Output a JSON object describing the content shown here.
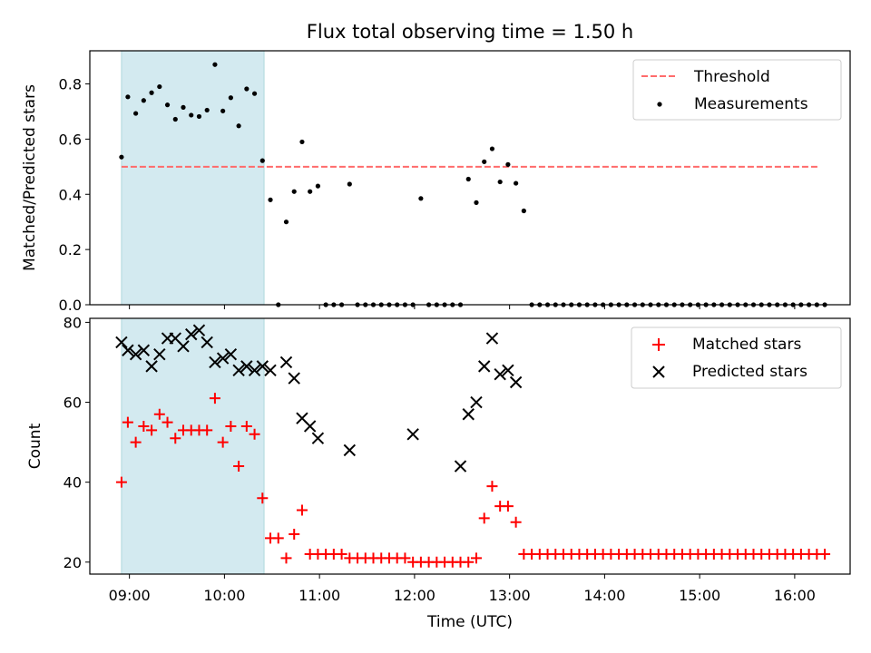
{
  "chart_data": [
    {
      "type": "scatter",
      "title": "Flux total observing time = 1.50 h",
      "xlabel": "",
      "ylabel": "Matched/Predicted stars",
      "ylim": [
        0,
        0.92
      ],
      "yticks": [
        0.0,
        0.2,
        0.4,
        0.6,
        0.8
      ],
      "ytick_labels": [
        "0.0",
        "0.2",
        "0.4",
        "0.6",
        "0.8"
      ],
      "highlight_span_utc": [
        "08:55",
        "10:25"
      ],
      "highlight_color": "#d3eaf0",
      "threshold": {
        "name": "Threshold",
        "y": 0.5,
        "x_range": [
          "08:55",
          "16:15"
        ],
        "color": "#ff6b6b",
        "style": "dashed"
      },
      "legend_position": "upper-right",
      "series": [
        {
          "name": "Measurements",
          "marker": "dot",
          "color": "#000000",
          "x": [
            "08:55",
            "08:59",
            "09:04",
            "09:09",
            "09:14",
            "09:19",
            "09:24",
            "09:29",
            "09:34",
            "09:39",
            "09:44",
            "09:49",
            "09:54",
            "09:59",
            "10:04",
            "10:09",
            "10:14",
            "10:19",
            "10:24",
            "10:29",
            "10:34",
            "10:39",
            "10:44",
            "10:49",
            "10:54",
            "10:59",
            "11:04",
            "11:09",
            "11:14",
            "11:19",
            "11:24",
            "11:29",
            "11:34",
            "11:39",
            "11:44",
            "11:49",
            "11:54",
            "11:59",
            "12:04",
            "12:09",
            "12:14",
            "12:19",
            "12:24",
            "12:29",
            "12:34",
            "12:39",
            "12:44",
            "12:49",
            "12:54",
            "12:59",
            "13:04",
            "13:09",
            "13:14",
            "13:19",
            "13:24",
            "13:29",
            "13:34",
            "13:39",
            "13:44",
            "13:49",
            "13:54",
            "13:59",
            "14:04",
            "14:09",
            "14:14",
            "14:19",
            "14:24",
            "14:29",
            "14:34",
            "14:39",
            "14:44",
            "14:49",
            "14:54",
            "14:59",
            "15:04",
            "15:09",
            "15:14",
            "15:19",
            "15:24",
            "15:29",
            "15:34",
            "15:39",
            "15:44",
            "15:49",
            "15:54",
            "15:59",
            "16:04",
            "16:09",
            "16:14",
            "16:19"
          ],
          "y": [
            0.535,
            0.753,
            0.693,
            0.74,
            0.768,
            0.79,
            0.724,
            0.672,
            0.715,
            0.687,
            0.682,
            0.705,
            0.87,
            0.702,
            0.75,
            0.648,
            0.782,
            0.765,
            0.522,
            0.38,
            0.0,
            0.3,
            0.41,
            0.59,
            0.41,
            0.43,
            0.0,
            0.0,
            0.0,
            0.437,
            0.0,
            0.0,
            0.0,
            0.0,
            0.0,
            0.0,
            0.0,
            0.0,
            0.385,
            0.0,
            0.0,
            0.0,
            0.0,
            0.0,
            0.455,
            0.37,
            0.518,
            0.565,
            0.445,
            0.508,
            0.44,
            0.34,
            0.0,
            0.0,
            0.0,
            0.0,
            0.0,
            0.0,
            0.0,
            0.0,
            0.0,
            0.0,
            0.0,
            0.0,
            0.0,
            0.0,
            0.0,
            0.0,
            0.0,
            0.0,
            0.0,
            0.0,
            0.0,
            0.0,
            0.0,
            0.0,
            0.0,
            0.0,
            0.0,
            0.0,
            0.0,
            0.0,
            0.0,
            0.0,
            0.0,
            0.0,
            0.0,
            0.0,
            0.0,
            0.0
          ]
        }
      ]
    },
    {
      "type": "scatter",
      "title": "",
      "xlabel": "Time (UTC)",
      "ylabel": "Count",
      "ylim": [
        17,
        81
      ],
      "yticks": [
        20,
        40,
        60,
        80
      ],
      "ytick_labels": [
        "20",
        "40",
        "60",
        "80"
      ],
      "xlim": [
        "08:35",
        "16:35"
      ],
      "xticks": [
        "09:00",
        "10:00",
        "11:00",
        "12:00",
        "13:00",
        "14:00",
        "15:00",
        "16:00"
      ],
      "xtick_labels": [
        "09:00",
        "10:00",
        "11:00",
        "12:00",
        "13:00",
        "14:00",
        "15:00",
        "16:00"
      ],
      "highlight_span_utc": [
        "08:55",
        "10:25"
      ],
      "highlight_color": "#d3eaf0",
      "legend_position": "upper-right",
      "series": [
        {
          "name": "Matched stars",
          "marker": "plus",
          "color": "#ff0000",
          "x": [
            "08:55",
            "08:59",
            "09:04",
            "09:09",
            "09:14",
            "09:19",
            "09:24",
            "09:29",
            "09:34",
            "09:39",
            "09:44",
            "09:49",
            "09:54",
            "09:59",
            "10:04",
            "10:09",
            "10:14",
            "10:19",
            "10:24",
            "10:29",
            "10:34",
            "10:39",
            "10:44",
            "10:49",
            "10:54",
            "10:59",
            "11:04",
            "11:09",
            "11:14",
            "11:19",
            "11:24",
            "11:29",
            "11:34",
            "11:39",
            "11:44",
            "11:49",
            "11:54",
            "11:59",
            "12:04",
            "12:09",
            "12:14",
            "12:19",
            "12:24",
            "12:29",
            "12:34",
            "12:39",
            "12:44",
            "12:49",
            "12:54",
            "12:59",
            "13:04",
            "13:09",
            "13:14",
            "13:19",
            "13:24",
            "13:29",
            "13:34",
            "13:39",
            "13:44",
            "13:49",
            "13:54",
            "13:59",
            "14:04",
            "14:09",
            "14:14",
            "14:19",
            "14:24",
            "14:29",
            "14:34",
            "14:39",
            "14:44",
            "14:49",
            "14:54",
            "14:59",
            "15:04",
            "15:09",
            "15:14",
            "15:19",
            "15:24",
            "15:29",
            "15:34",
            "15:39",
            "15:44",
            "15:49",
            "15:54",
            "15:59",
            "16:04",
            "16:09",
            "16:14",
            "16:19"
          ],
          "y": [
            40,
            55,
            50,
            54,
            53,
            57,
            55,
            51,
            53,
            53,
            53,
            53,
            61,
            50,
            54,
            44,
            54,
            52,
            36,
            26,
            26,
            21,
            27,
            33,
            22,
            22,
            22,
            22,
            22,
            21,
            21,
            21,
            21,
            21,
            21,
            21,
            21,
            20,
            20,
            20,
            20,
            20,
            20,
            20,
            20,
            21,
            31,
            39,
            34,
            34,
            30,
            22,
            22,
            22,
            22,
            22,
            22,
            22,
            22,
            22,
            22,
            22,
            22,
            22,
            22,
            22,
            22,
            22,
            22,
            22,
            22,
            22,
            22,
            22,
            22,
            22,
            22,
            22,
            22,
            22,
            22,
            22,
            22,
            22,
            22,
            22,
            22,
            22,
            22,
            22
          ]
        },
        {
          "name": "Predicted stars",
          "marker": "x",
          "color": "#000000",
          "x": [
            "08:55",
            "08:59",
            "09:04",
            "09:09",
            "09:14",
            "09:19",
            "09:24",
            "09:29",
            "09:34",
            "09:39",
            "09:44",
            "09:49",
            "09:54",
            "09:59",
            "10:04",
            "10:09",
            "10:14",
            "10:19",
            "10:24",
            "10:29",
            "10:39",
            "10:44",
            "10:49",
            "10:54",
            "10:59",
            "11:19",
            "11:59",
            "12:29",
            "12:34",
            "12:39",
            "12:44",
            "12:49",
            "12:54",
            "12:59",
            "13:04"
          ],
          "y": [
            75,
            73,
            72,
            73,
            69,
            72,
            76,
            76,
            74,
            77,
            78,
            75,
            70,
            71,
            72,
            68,
            69,
            68,
            69,
            68,
            70,
            66,
            56,
            54,
            51,
            48,
            52,
            44,
            57,
            60,
            69,
            76,
            67,
            68,
            65
          ]
        }
      ]
    }
  ]
}
